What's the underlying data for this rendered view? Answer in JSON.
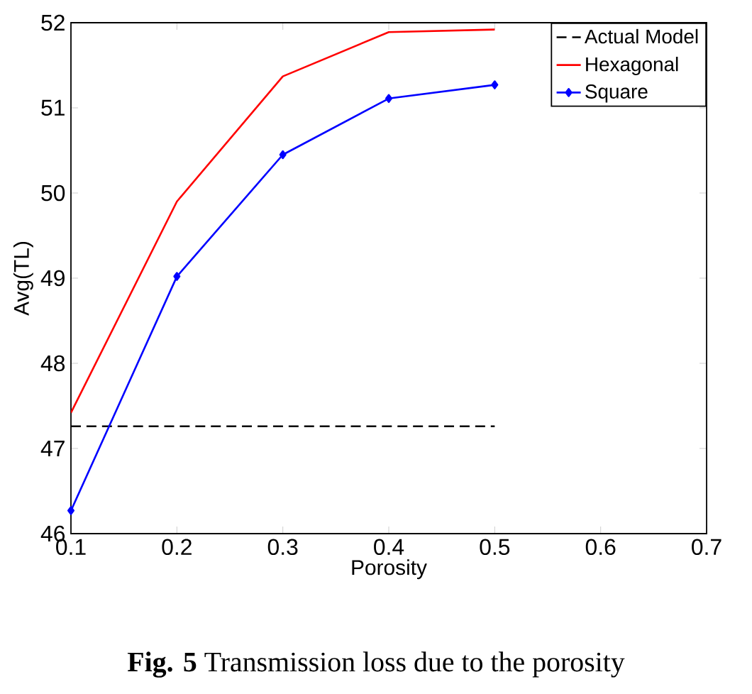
{
  "chart_data": {
    "type": "line",
    "xlabel": "Porosity",
    "ylabel": "Avg(TL)",
    "x": [
      0.1,
      0.2,
      0.3,
      0.4,
      0.5
    ],
    "series": [
      {
        "name": "Actual Model",
        "color": "#000000",
        "line_style": "dashed",
        "marker": "none",
        "values": [
          47.26,
          47.26,
          47.26,
          47.26,
          47.26
        ]
      },
      {
        "name": "Hexagonal",
        "color": "#ff0000",
        "line_style": "solid",
        "marker": "none",
        "values": [
          47.42,
          49.9,
          51.37,
          51.89,
          51.92
        ]
      },
      {
        "name": "Square",
        "color": "#0000ff",
        "line_style": "solid",
        "marker": "diamond",
        "values": [
          46.27,
          49.02,
          50.45,
          51.11,
          51.27
        ]
      }
    ],
    "xlim": [
      0.1,
      0.7
    ],
    "ylim": [
      46,
      52
    ],
    "xticks": [
      0.1,
      0.2,
      0.3,
      0.4,
      0.5,
      0.6,
      0.7
    ],
    "yticks": [
      46,
      47,
      48,
      49,
      50,
      51,
      52
    ],
    "legend": "top right",
    "grid": false,
    "annotations": [
      "**Fig. 5** Transmission loss due to the porosity"
    ]
  }
}
